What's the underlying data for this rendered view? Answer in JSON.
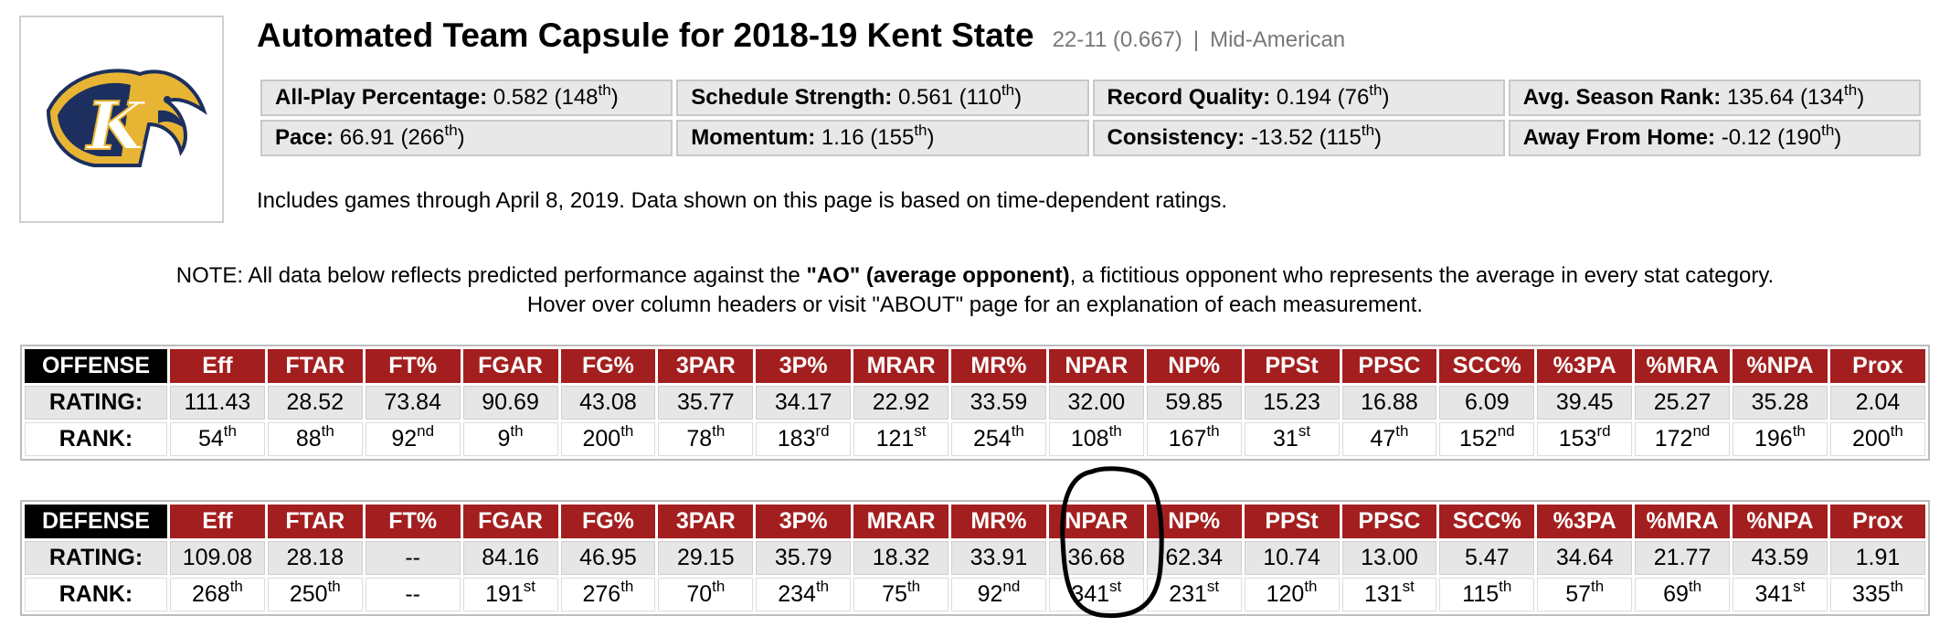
{
  "header": {
    "title": "Automated Team Capsule for 2018-19 Kent State",
    "record": "22-11 (0.667)",
    "separator": "|",
    "conference": "Mid-American"
  },
  "summary": [
    [
      {
        "label": "All-Play Percentage:",
        "value": "0.582 (148",
        "suffix": "th",
        "close": ")"
      },
      {
        "label": "Schedule Strength:",
        "value": "0.561 (110",
        "suffix": "th",
        "close": ")"
      },
      {
        "label": "Record Quality:",
        "value": "0.194 (76",
        "suffix": "th",
        "close": ")"
      },
      {
        "label": "Avg. Season Rank:",
        "value": "135.64 (134",
        "suffix": "th",
        "close": ")"
      }
    ],
    [
      {
        "label": "Pace:",
        "value": "66.91 (266",
        "suffix": "th",
        "close": ")"
      },
      {
        "label": "Momentum:",
        "value": "1.16 (155",
        "suffix": "th",
        "close": ")"
      },
      {
        "label": "Consistency:",
        "value": "-13.52 (115",
        "suffix": "th",
        "close": ")"
      },
      {
        "label": "Away From Home:",
        "value": "-0.12 (190",
        "suffix": "th",
        "close": ")"
      }
    ]
  ],
  "includes": "Includes games through April 8, 2019. Data shown on this page is based on time-dependent ratings.",
  "note": {
    "line1_pre": "NOTE: All data below reflects predicted performance against the ",
    "line1_bold": "\"AO\" (average opponent)",
    "line1_post": ", a fictitious opponent who represents the average in every stat category.",
    "line2": "Hover over column headers or visit \"ABOUT\" page for an explanation of each measurement."
  },
  "columns": [
    "Eff",
    "FTAR",
    "FT%",
    "FGAR",
    "FG%",
    "3PAR",
    "3P%",
    "MRAR",
    "MR%",
    "NPAR",
    "NP%",
    "PPSt",
    "PPSC",
    "SCC%",
    "%3PA",
    "%MRA",
    "%NPA",
    "Prox"
  ],
  "row_labels": {
    "rating": "RATING:",
    "rank": "RANK:"
  },
  "offense": {
    "label": "OFFENSE",
    "ratings": [
      "111.43",
      "28.52",
      "73.84",
      "90.69",
      "43.08",
      "35.77",
      "34.17",
      "22.92",
      "33.59",
      "32.00",
      "59.85",
      "15.23",
      "16.88",
      "6.09",
      "39.45",
      "25.27",
      "35.28",
      "2.04"
    ],
    "ranks": [
      [
        "54",
        "th"
      ],
      [
        "88",
        "th"
      ],
      [
        "92",
        "nd"
      ],
      [
        "9",
        "th"
      ],
      [
        "200",
        "th"
      ],
      [
        "78",
        "th"
      ],
      [
        "183",
        "rd"
      ],
      [
        "121",
        "st"
      ],
      [
        "254",
        "th"
      ],
      [
        "108",
        "th"
      ],
      [
        "167",
        "th"
      ],
      [
        "31",
        "st"
      ],
      [
        "47",
        "th"
      ],
      [
        "152",
        "nd"
      ],
      [
        "153",
        "rd"
      ],
      [
        "172",
        "nd"
      ],
      [
        "196",
        "th"
      ],
      [
        "200",
        "th"
      ]
    ]
  },
  "defense": {
    "label": "DEFENSE",
    "ratings": [
      "109.08",
      "28.18",
      "--",
      "84.16",
      "46.95",
      "29.15",
      "35.79",
      "18.32",
      "33.91",
      "36.68",
      "62.34",
      "10.74",
      "13.00",
      "5.47",
      "34.64",
      "21.77",
      "43.59",
      "1.91"
    ],
    "ranks": [
      [
        "268",
        "th"
      ],
      [
        "250",
        "th"
      ],
      [
        "--",
        ""
      ],
      [
        "191",
        "st"
      ],
      [
        "276",
        "th"
      ],
      [
        "70",
        "th"
      ],
      [
        "234",
        "th"
      ],
      [
        "75",
        "th"
      ],
      [
        "92",
        "nd"
      ],
      [
        "341",
        "st"
      ],
      [
        "231",
        "st"
      ],
      [
        "120",
        "th"
      ],
      [
        "131",
        "st"
      ],
      [
        "115",
        "th"
      ],
      [
        "57",
        "th"
      ],
      [
        "69",
        "th"
      ],
      [
        "341",
        "st"
      ],
      [
        "335",
        "th"
      ]
    ]
  },
  "colors": {
    "header_red": "#a31f1f",
    "side_black": "#000000",
    "logo_navy": "#1c2f5e",
    "logo_gold": "#e8b434"
  },
  "logo": {
    "icon": "golden-flash-eagle-icon",
    "letter": "K"
  }
}
